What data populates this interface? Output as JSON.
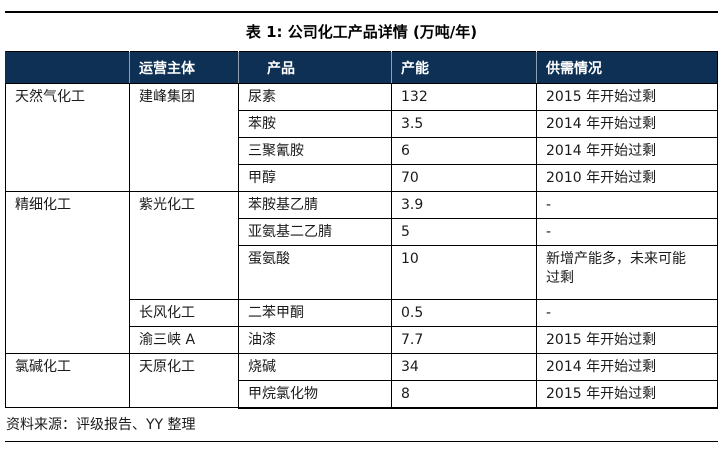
{
  "title": "表 1: 公司化工产品详情 (万吨/年)",
  "source_note": "资料来源：评级报告、YY 整理",
  "colors": {
    "header_bg": "#0D3054",
    "header_text": "#FFFFFF",
    "border": "#000000"
  },
  "table": {
    "headers": {
      "category": "",
      "operator": "运营主体",
      "product": "产品",
      "capacity": "产能",
      "supply": "供需情况"
    },
    "rows": [
      {
        "category": "天然气化工",
        "operator": "建峰集团",
        "product": "尿素",
        "capacity": "132",
        "supply": "2015 年开始过剩"
      },
      {
        "product": "苯胺",
        "capacity": "3.5",
        "supply": "2014 年开始过剩"
      },
      {
        "product": "三聚氰胺",
        "capacity": "6",
        "supply": "2014 年开始过剩"
      },
      {
        "product": "甲醇",
        "capacity": "70",
        "supply": "2010 年开始过剩"
      },
      {
        "category": "精细化工",
        "operator": "紫光化工",
        "product": "苯胺基乙腈",
        "capacity": "3.9",
        "supply": "-"
      },
      {
        "product": "亚氨基二乙腈",
        "capacity": "5",
        "supply": "-"
      },
      {
        "product": "蛋氨酸",
        "capacity": "10",
        "supply": "新增产能多，未来可能\n过剩"
      },
      {
        "operator": "长风化工",
        "product": "二苯甲酮",
        "capacity": "0.5",
        "supply": "-"
      },
      {
        "operator": "渝三峡 A",
        "product": "油漆",
        "capacity": "7.7",
        "supply": "2015 年开始过剩"
      },
      {
        "category": "氯碱化工",
        "operator": "天原化工",
        "product": "烧碱",
        "capacity": "34",
        "supply": "2014 年开始过剩"
      },
      {
        "product": "甲烷氯化物",
        "capacity": "8",
        "supply": "2015 年开始过剩"
      }
    ]
  }
}
